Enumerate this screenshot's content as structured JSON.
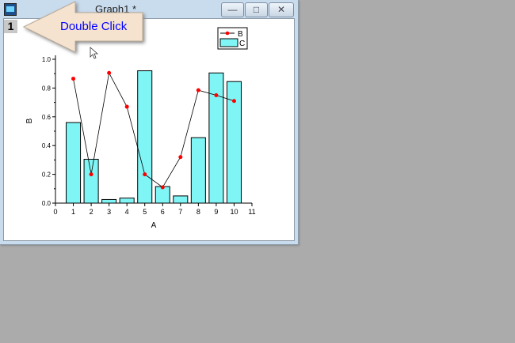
{
  "window": {
    "title": "Graph1 *",
    "layer_label": "1",
    "buttons": {
      "minimize": "minimize-icon",
      "maximize": "maximize-icon",
      "close": "close-icon"
    }
  },
  "callout": {
    "text": "Double Click",
    "text_color": "#0000ff",
    "fill": "#f5e3d0"
  },
  "chart_data": {
    "type": "bar+line",
    "xlabel": "A",
    "ylabel": "B",
    "xlim": [
      0,
      11
    ],
    "ylim": [
      0,
      1.0
    ],
    "x_ticks": [
      0,
      1,
      2,
      3,
      4,
      5,
      6,
      7,
      8,
      9,
      10,
      11
    ],
    "y_ticks": [
      "0.0",
      "0.2",
      "0.4",
      "0.6",
      "0.8",
      "1.0"
    ],
    "grid": false,
    "legend": "top-right",
    "x": [
      1,
      2,
      3,
      4,
      5,
      6,
      7,
      8,
      9,
      10
    ],
    "series": [
      {
        "name": "B",
        "kind": "line+symbol",
        "color": "#ff0000",
        "values": [
          0.865,
          0.2,
          0.905,
          0.67,
          0.2,
          0.11,
          0.32,
          0.785,
          0.75,
          0.71
        ]
      },
      {
        "name": "C",
        "kind": "bar",
        "color": "#80f5f5",
        "values": [
          0.56,
          0.305,
          0.025,
          0.035,
          0.92,
          0.115,
          0.05,
          0.455,
          0.905,
          0.845
        ]
      }
    ]
  }
}
